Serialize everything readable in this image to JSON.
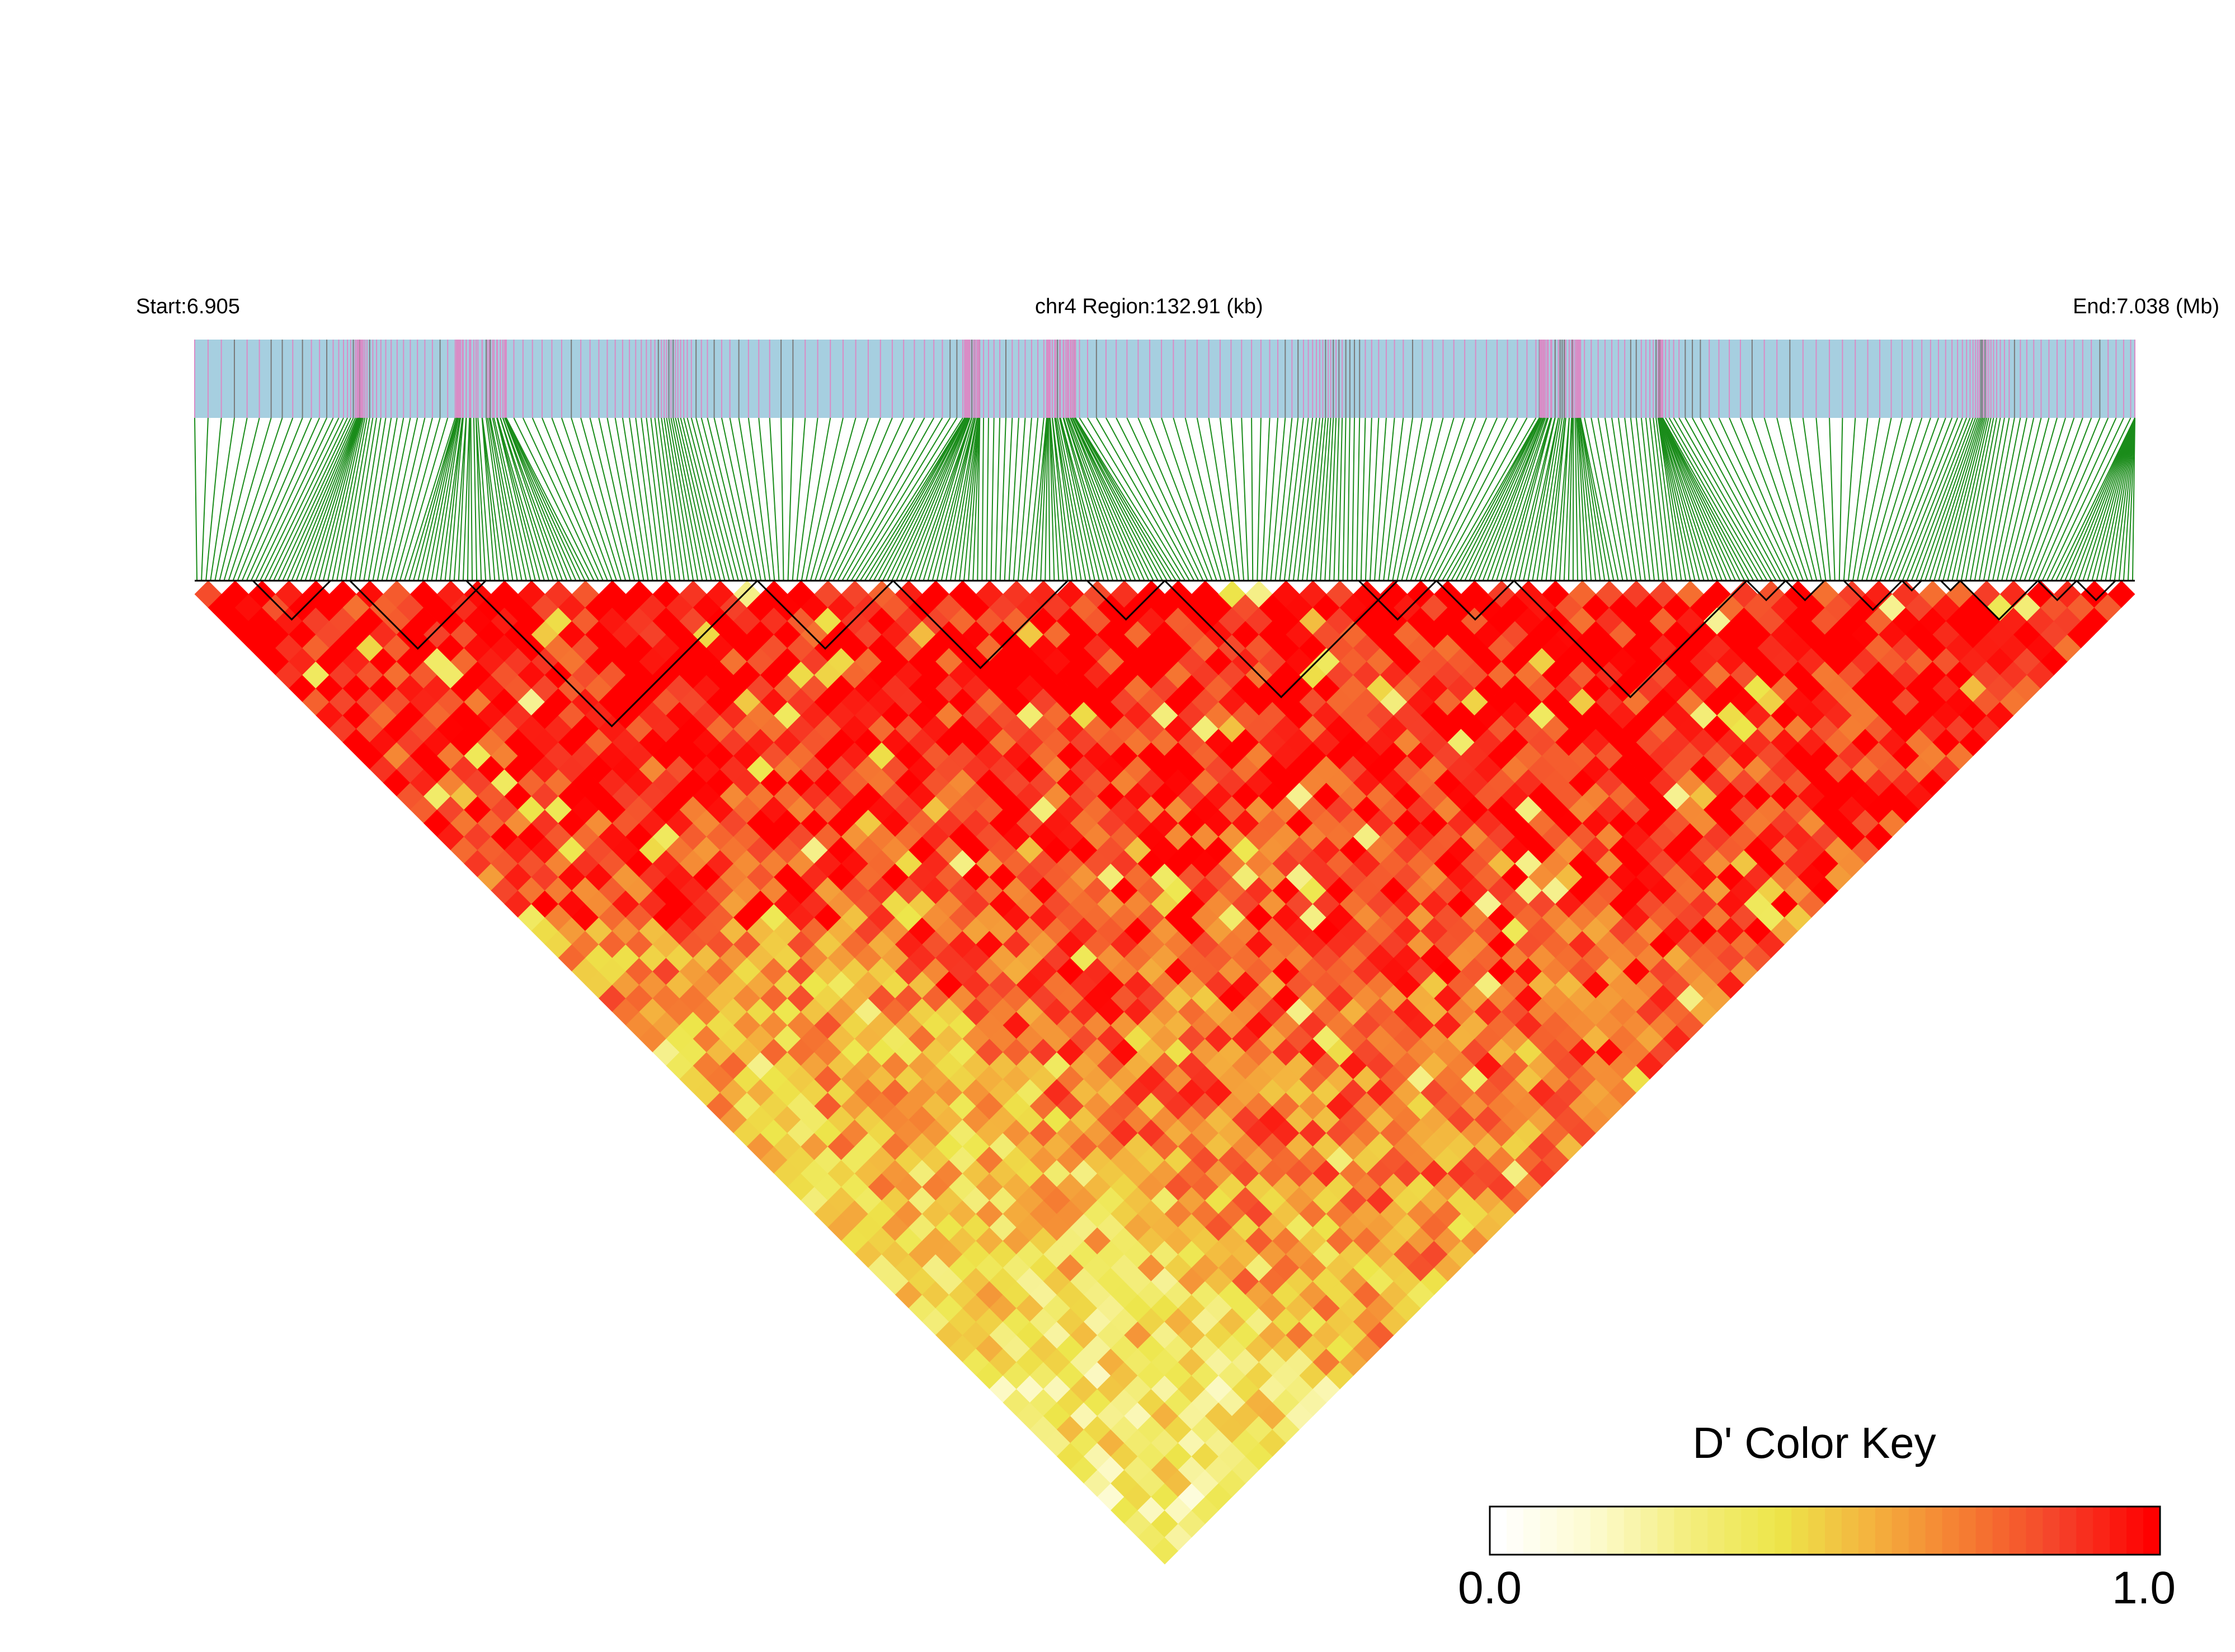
{
  "header": {
    "start_label": "Start:6.905",
    "region_label": "chr4 Region:132.91 (kb)",
    "end_label": "End:7.038 (Mb)"
  },
  "legend": {
    "title": "D' Color Key",
    "min_label": "0.0",
    "max_label": "1.0",
    "colors": [
      "#ffffff",
      "#fdfbd0",
      "#f4ee80",
      "#ede64a",
      "#f4b23e",
      "#f57c32",
      "#f5422a",
      "#ff0000"
    ]
  },
  "colors": {
    "track_background": "#a6cfe0",
    "snp_tick_pink": "#d98cc6",
    "snp_tick_gray": "#7a7a7a",
    "connector_green": "#1a8c1a",
    "block_outline": "#000000"
  },
  "chart_data": {
    "type": "heatmap",
    "title": "",
    "measure": "D'",
    "chromosome": "chr4",
    "region_start_mb": 6.905,
    "region_end_mb": 7.038,
    "region_length_kb": 132.91,
    "value_range": [
      0.0,
      1.0
    ],
    "snp_count": 430,
    "haplotype_block_count": 21,
    "dominant_value": "high (near 1.0) across most of the region",
    "weaker_pairs": "lower D' values concentrated toward the left/lower edge of the triangle"
  }
}
